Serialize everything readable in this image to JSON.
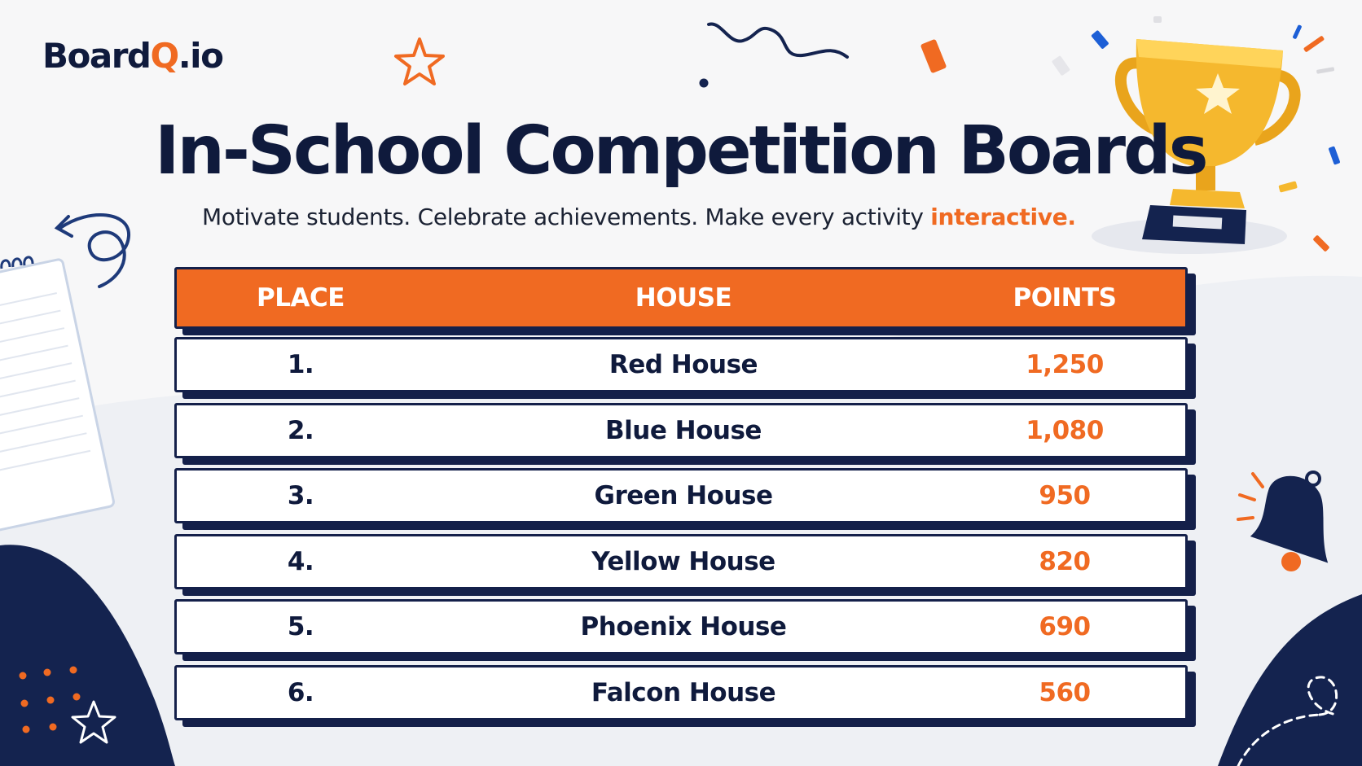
{
  "brand": {
    "name_prefix": "Board",
    "name_accent": "Q",
    "name_suffix": ".io"
  },
  "header": {
    "title": "In-School Competition Boards",
    "subtitle_lead": "Motivate students. Celebrate achievements. Make every activity",
    "subtitle_highlight": "interactive."
  },
  "board": {
    "columns": [
      "PLACE",
      "HOUSE",
      "POINTS"
    ],
    "rows": [
      {
        "place": "1.",
        "house": "Red House",
        "points": "1,250"
      },
      {
        "place": "2.",
        "house": "Blue House",
        "points": "1,080"
      },
      {
        "place": "3.",
        "house": "Green House",
        "points": "950"
      },
      {
        "place": "4.",
        "house": "Yellow House",
        "points": "820"
      },
      {
        "place": "5.",
        "house": "Phoenix House",
        "points": "690"
      },
      {
        "place": "6.",
        "house": "Falcon House",
        "points": "560"
      }
    ]
  },
  "colors": {
    "navy": "#0f1a3c",
    "orange": "#f06a22",
    "gold": "#f5b82e",
    "background": "#f7f7f8"
  },
  "decorations": [
    "trophy-icon",
    "bell-icon",
    "star-icon",
    "notepad-icon",
    "squiggle-arrow-icon",
    "confetti"
  ]
}
